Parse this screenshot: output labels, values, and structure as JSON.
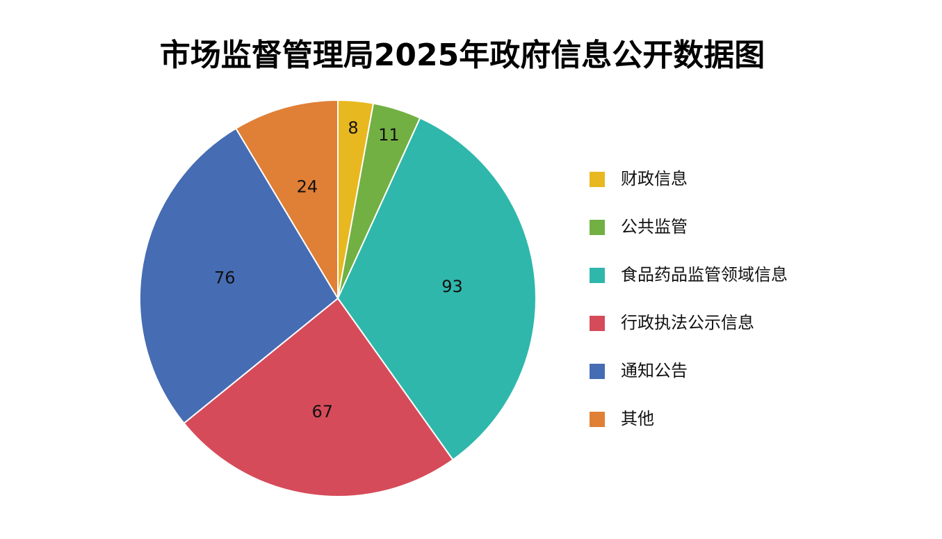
{
  "chart_data": {
    "type": "pie",
    "title": "市场监督管理局2025年政府信息公开数据图",
    "categories": [
      "财政信息",
      "公共监管",
      "食品药品监管领域信息",
      "行政执法公示信息",
      "通知公告",
      "其他"
    ],
    "values": [
      8,
      11,
      93,
      67,
      76,
      24
    ],
    "colors": [
      "#e8b820",
      "#72b043",
      "#2fb7ab",
      "#d64b5a",
      "#466cb3",
      "#e07f36"
    ],
    "legend": "right"
  }
}
